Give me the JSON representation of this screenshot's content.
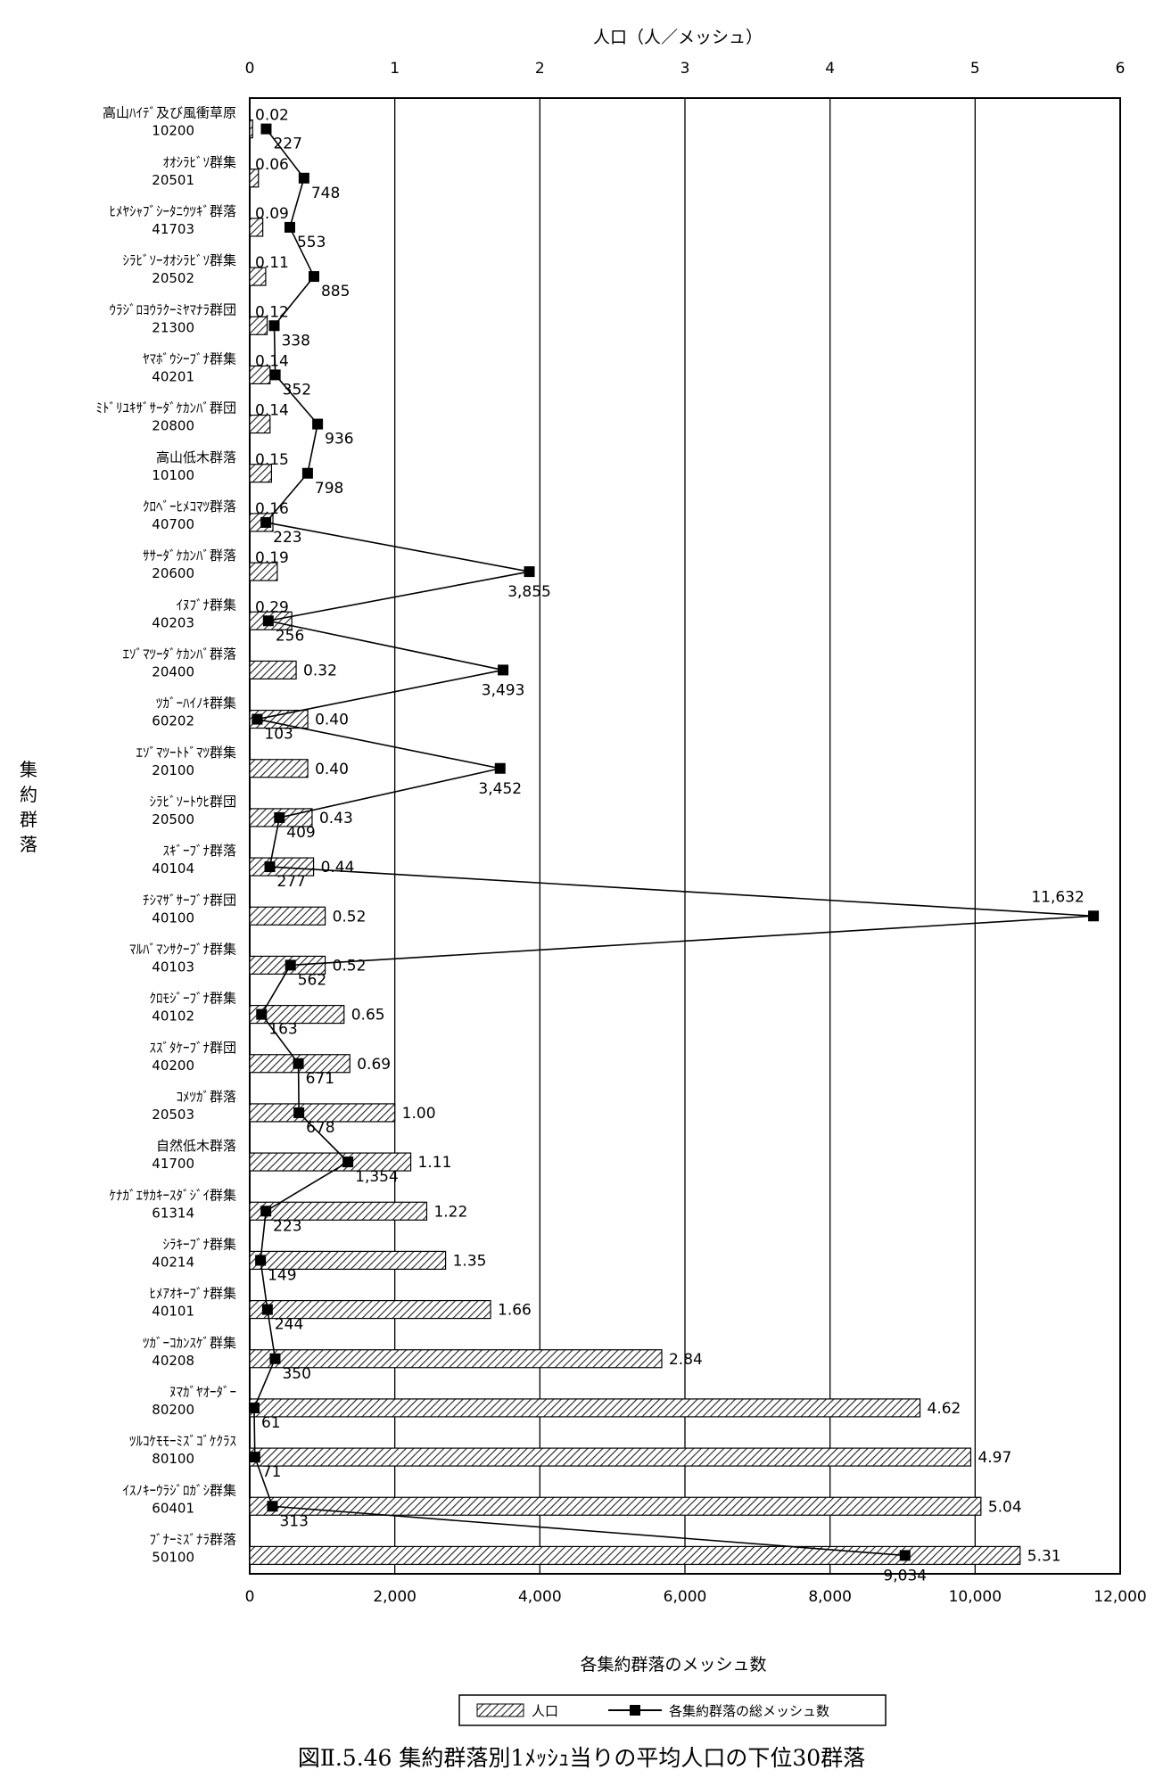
{
  "chart_data": {
    "type": "bar",
    "title": "図Ⅱ.5.46 集約群落別1ﾒｯｼｭ当りの平均人口の下位30群落",
    "top_axis_label": "人口（人／メッシュ）",
    "bottom_axis_label": "各集約群落のメッシュ数",
    "ylabel": "集約群落",
    "pop_axis": {
      "min": 0,
      "max": 6,
      "ticks": [
        "0",
        "1",
        "2",
        "3",
        "4",
        "5",
        "6"
      ]
    },
    "mesh_axis": {
      "min": 0,
      "max": 12000,
      "ticks": [
        "0",
        "2,000",
        "4,000",
        "6,000",
        "8,000",
        "10,000",
        "12,000"
      ]
    },
    "categories": [
      {
        "name": "高山ﾊｲﾃﾞ及び風衝草原",
        "code": "10200"
      },
      {
        "name": "ｵｵｼﾗﾋﾞｿ群集",
        "code": "20501"
      },
      {
        "name": "ﾋﾒﾔｼｬﾌﾞｼｰﾀﾆｳﾂｷﾞ群落",
        "code": "41703"
      },
      {
        "name": "ｼﾗﾋﾞｿｰｵｵｼﾗﾋﾞｿ群集",
        "code": "20502"
      },
      {
        "name": "ｳﾗｼﾞﾛﾖｳﾗｸｰﾐﾔﾏﾅﾗ群団",
        "code": "21300"
      },
      {
        "name": "ﾔﾏﾎﾞｳｼｰﾌﾞﾅ群集",
        "code": "40201"
      },
      {
        "name": "ﾐﾄﾞﾘﾕｷｻﾞｻｰﾀﾞｹｶﾝﾊﾞ群団",
        "code": "20800"
      },
      {
        "name": "高山低木群落",
        "code": "10100"
      },
      {
        "name": "ｸﾛﾍﾞｰﾋﾒｺﾏﾂ群落",
        "code": "40700"
      },
      {
        "name": "ｻｻｰﾀﾞｹｶﾝﾊﾞ群落",
        "code": "20600"
      },
      {
        "name": "ｲﾇﾌﾞﾅ群集",
        "code": "40203"
      },
      {
        "name": "ｴｿﾞﾏﾂｰﾀﾞｹｶﾝﾊﾞ群落",
        "code": "20400"
      },
      {
        "name": "ﾂｶﾞｰﾊｲﾉｷ群集",
        "code": "60202"
      },
      {
        "name": "ｴｿﾞﾏﾂｰﾄﾄﾞﾏﾂ群集",
        "code": "20100"
      },
      {
        "name": "ｼﾗﾋﾞｿｰﾄｳﾋ群団",
        "code": "20500"
      },
      {
        "name": "ｽｷﾞｰﾌﾞﾅ群落",
        "code": "40104"
      },
      {
        "name": "ﾁｼﾏｻﾞｻｰﾌﾞﾅ群団",
        "code": "40100"
      },
      {
        "name": "ﾏﾙﾊﾞﾏﾝｻｸｰﾌﾞﾅ群集",
        "code": "40103"
      },
      {
        "name": "ｸﾛﾓｼﾞｰﾌﾞﾅ群集",
        "code": "40102"
      },
      {
        "name": "ｽｽﾞﾀｹｰﾌﾞﾅ群団",
        "code": "40200"
      },
      {
        "name": "ｺﾒﾂｶﾞ群落",
        "code": "20503"
      },
      {
        "name": "自然低木群落",
        "code": "41700"
      },
      {
        "name": "ｹﾅｶﾞｴｻｶｷｰｽﾀﾞｼﾞｲ群集",
        "code": "61314"
      },
      {
        "name": "ｼﾗｷｰﾌﾞﾅ群集",
        "code": "40214"
      },
      {
        "name": "ﾋﾒｱｵｷｰﾌﾞﾅ群集",
        "code": "40101"
      },
      {
        "name": "ﾂｶﾞｰｺｶﾝｽｹﾞ群集",
        "code": "40208"
      },
      {
        "name": "ﾇﾏｶﾞﾔｵｰﾀﾞｰ",
        "code": "80200"
      },
      {
        "name": "ﾂﾙｺｹﾓﾓｰﾐｽﾞｺﾞｹｸﾗｽ",
        "code": "80100"
      },
      {
        "name": "ｲｽﾉｷｰｳﾗｼﾞﾛｶﾞｼ群集",
        "code": "60401"
      },
      {
        "name": "ﾌﾞﾅｰﾐｽﾞﾅﾗ群落",
        "code": "50100"
      }
    ],
    "series": [
      {
        "name": "人口",
        "axis": "top",
        "type": "bar",
        "values": [
          0.02,
          0.06,
          0.09,
          0.11,
          0.12,
          0.14,
          0.14,
          0.15,
          0.16,
          0.19,
          0.29,
          0.32,
          0.4,
          0.4,
          0.43,
          0.44,
          0.52,
          0.52,
          0.65,
          0.69,
          1.0,
          1.11,
          1.22,
          1.35,
          1.66,
          2.84,
          4.62,
          4.97,
          5.04,
          5.31
        ],
        "labels": [
          "0.02",
          "0.06",
          "0.09",
          "0.11",
          "0.12",
          "0.14",
          "0.14",
          "0.15",
          "0.16",
          "0.19",
          "0.29",
          "0.32",
          "0.40",
          "0.40",
          "0.43",
          "0.44",
          "0.52",
          "0.52",
          "0.65",
          "0.69",
          "1.00",
          "1.11",
          "1.22",
          "1.35",
          "1.66",
          "2.84",
          "4.62",
          "4.97",
          "5.04",
          "5.31"
        ]
      },
      {
        "name": "各集約群落の総メッシュ数",
        "axis": "bottom",
        "type": "line",
        "values": [
          227,
          748,
          553,
          885,
          338,
          352,
          936,
          798,
          223,
          3855,
          256,
          3493,
          103,
          3452,
          409,
          277,
          11632,
          562,
          163,
          671,
          678,
          1354,
          223,
          149,
          244,
          350,
          61,
          71,
          313,
          9034
        ],
        "labels": [
          "227",
          "748",
          "553",
          "885",
          "338",
          "352",
          "936",
          "798",
          "223",
          "3,855",
          "256",
          "3,493",
          "103",
          "3,452",
          "409",
          "277",
          "11,632",
          "562",
          "163",
          "671",
          "678",
          "1,354",
          "223",
          "149",
          "244",
          "350",
          "61",
          "71",
          "313",
          "9,034"
        ]
      }
    ],
    "legend": {
      "position": "bottom",
      "items": [
        "人口",
        "各集約群落の総メッシュ数"
      ]
    },
    "grid": "vertical"
  }
}
